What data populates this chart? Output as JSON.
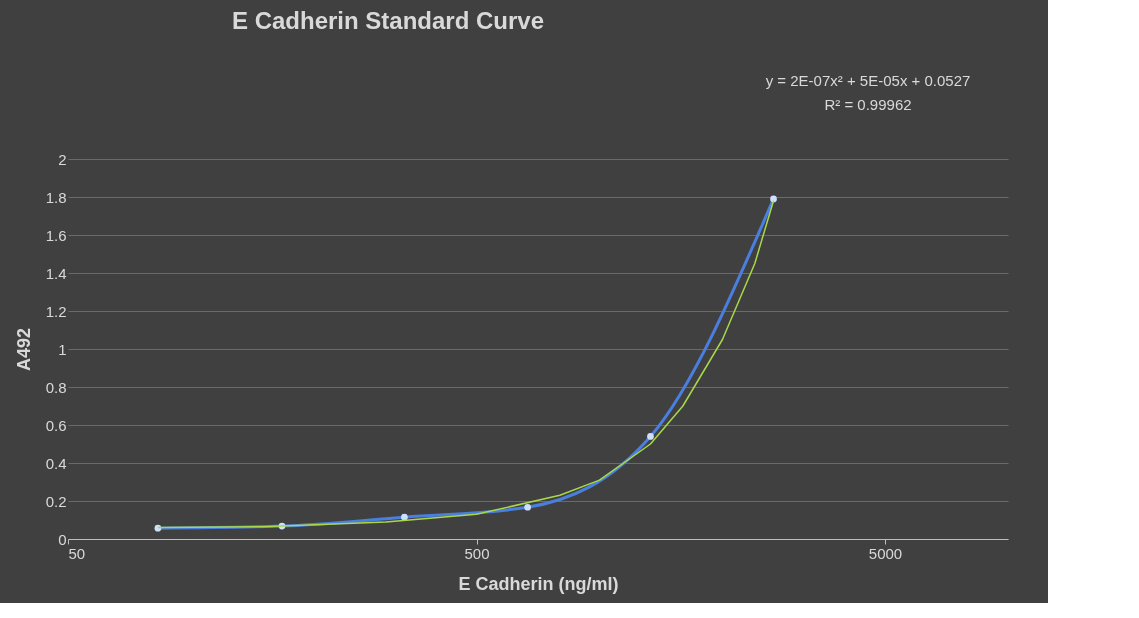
{
  "chart_data": {
    "type": "line",
    "title": "E Cadherin Standard Curve",
    "xlabel": "E Cadherin (ng/ml)",
    "ylabel": "A492",
    "annotations": [
      "y = 2E-07x² + 5E-05x + 0.0527",
      "R² = 0.99962"
    ],
    "log": "x",
    "xlim": [
      50,
      10000
    ],
    "xticks": [
      50,
      500,
      5000
    ],
    "ylim": [
      0,
      2
    ],
    "yticks": [
      0,
      0.2,
      0.4,
      0.6,
      0.8,
      1,
      1.2,
      1.4,
      1.6,
      1.8,
      2
    ],
    "grid": "y",
    "series": [
      {
        "color": "#4a7fe0",
        "marker": "circle",
        "x": [
          83,
          167,
          333,
          667,
          1333,
          2667
        ],
        "values": [
          0.057,
          0.068,
          0.115,
          0.167,
          0.54,
          1.79
        ]
      },
      {
        "type": "line",
        "color": "#a8d84a",
        "marker": "none",
        "x": [
          83,
          150,
          300,
          500,
          800,
          1000,
          1333,
          1600,
          2000,
          2400,
          2667
        ],
        "values": [
          0.06,
          0.065,
          0.09,
          0.13,
          0.23,
          0.31,
          0.5,
          0.7,
          1.05,
          1.45,
          1.78
        ]
      }
    ]
  }
}
